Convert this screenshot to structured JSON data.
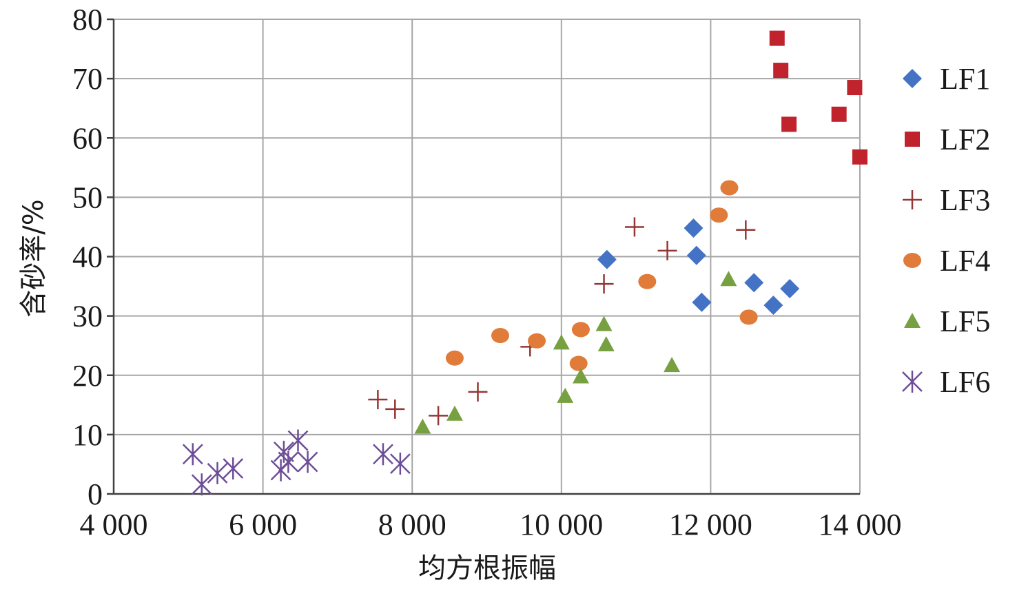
{
  "chart_data": {
    "type": "scatter",
    "title": "",
    "xlabel": "均方根振幅",
    "ylabel": "含砂率/%",
    "xlim": [
      4000,
      14000
    ],
    "ylim": [
      0,
      80
    ],
    "x_ticks": [
      4000,
      6000,
      8000,
      10000,
      12000,
      14000
    ],
    "x_tick_labels": [
      "4 000",
      "6 000",
      "8 000",
      "10 000",
      "12 000",
      "14 000"
    ],
    "y_ticks": [
      0,
      10,
      20,
      30,
      40,
      50,
      60,
      70,
      80
    ],
    "y_tick_labels": [
      "0",
      "10",
      "20",
      "30",
      "40",
      "50",
      "60",
      "70",
      "80"
    ],
    "grid": true,
    "legend_position": "right",
    "series": [
      {
        "name": "LF1",
        "marker": "diamond",
        "color": "#4472c4",
        "points": [
          [
            10610,
            39.5
          ],
          [
            11770,
            44.8
          ],
          [
            11810,
            40.2
          ],
          [
            11880,
            32.3
          ],
          [
            12580,
            35.6
          ],
          [
            12840,
            31.8
          ],
          [
            13060,
            34.6
          ]
        ]
      },
      {
        "name": "LF2",
        "marker": "square",
        "color": "#c0232c",
        "points": [
          [
            12890,
            76.8
          ],
          [
            12940,
            71.4
          ],
          [
            13050,
            62.3
          ],
          [
            13720,
            64.0
          ],
          [
            13930,
            68.5
          ],
          [
            14000,
            56.8
          ]
        ]
      },
      {
        "name": "LF3",
        "marker": "plus",
        "color": "#943634",
        "points": [
          [
            7540,
            15.9
          ],
          [
            7770,
            14.3
          ],
          [
            8350,
            13.2
          ],
          [
            8880,
            17.2
          ],
          [
            9580,
            24.8
          ],
          [
            10570,
            35.4
          ],
          [
            10980,
            45.0
          ],
          [
            11420,
            41.0
          ],
          [
            12470,
            44.5
          ]
        ]
      },
      {
        "name": "LF4",
        "marker": "circle",
        "color": "#e07b39",
        "points": [
          [
            8570,
            22.9
          ],
          [
            9180,
            26.7
          ],
          [
            9670,
            25.8
          ],
          [
            10230,
            22.0
          ],
          [
            10260,
            27.7
          ],
          [
            11150,
            35.8
          ],
          [
            12110,
            47.0
          ],
          [
            12250,
            51.6
          ],
          [
            12510,
            29.8
          ]
        ]
      },
      {
        "name": "LF5",
        "marker": "triangle",
        "color": "#77a041",
        "points": [
          [
            8140,
            11.3
          ],
          [
            8570,
            13.5
          ],
          [
            10000,
            25.5
          ],
          [
            10050,
            16.5
          ],
          [
            10260,
            19.8
          ],
          [
            10570,
            28.6
          ],
          [
            10600,
            25.2
          ],
          [
            11480,
            21.7
          ],
          [
            12240,
            36.2
          ]
        ]
      },
      {
        "name": "LF6",
        "marker": "star",
        "color": "#6c4d97",
        "points": [
          [
            5060,
            6.7
          ],
          [
            5180,
            1.6
          ],
          [
            5390,
            3.5
          ],
          [
            5600,
            4.3
          ],
          [
            6240,
            4.0
          ],
          [
            6280,
            7.1
          ],
          [
            6340,
            5.4
          ],
          [
            6470,
            9.0
          ],
          [
            6600,
            5.4
          ],
          [
            7610,
            6.7
          ],
          [
            7840,
            5.1
          ]
        ]
      }
    ]
  }
}
